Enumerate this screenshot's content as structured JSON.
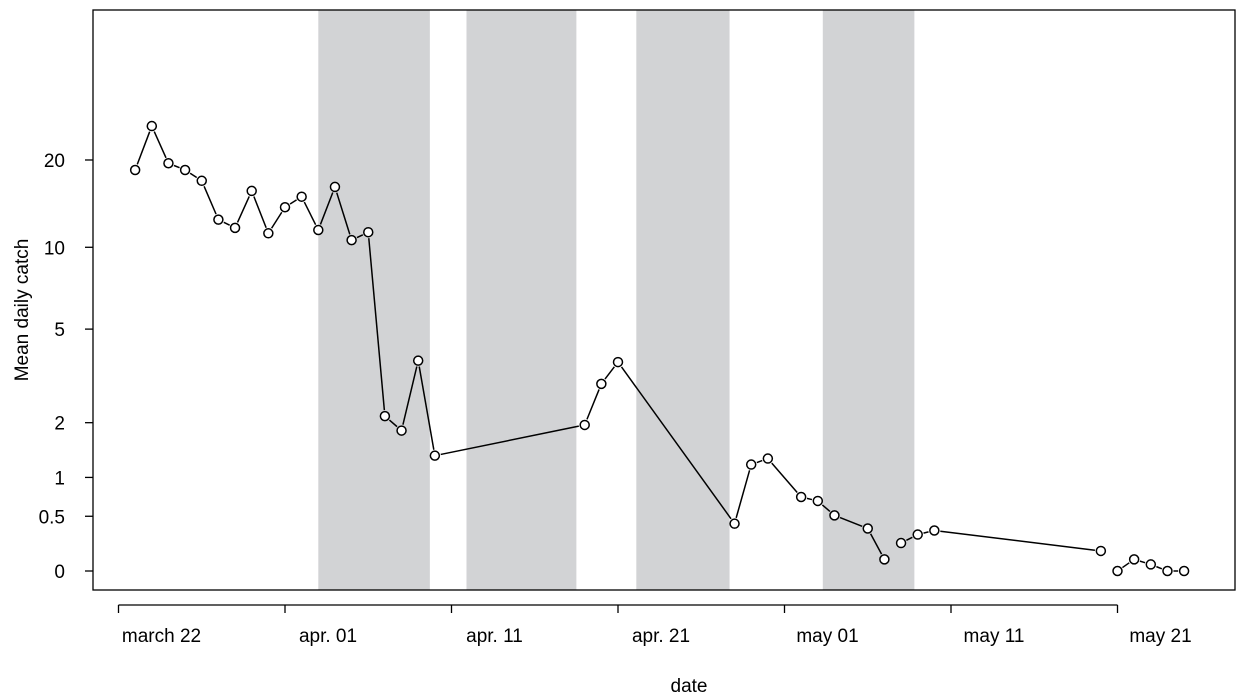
{
  "chart_data": {
    "type": "line",
    "title": "",
    "xlabel": "date",
    "ylabel": "Mean daily catch",
    "y_scale": "log(y+1)",
    "y_ticks": [
      {
        "value": 0,
        "label": "0"
      },
      {
        "value": 0.5,
        "label": "0.5"
      },
      {
        "value": 1,
        "label": "1"
      },
      {
        "value": 2,
        "label": "2"
      },
      {
        "value": 5,
        "label": "5"
      },
      {
        "value": 10,
        "label": "10"
      },
      {
        "value": 20,
        "label": "20"
      }
    ],
    "x_ticks": [
      {
        "date": "2000-03-22",
        "label": "march 22"
      },
      {
        "date": "2000-04-01",
        "label": "apr. 01"
      },
      {
        "date": "2000-04-11",
        "label": "apr. 11"
      },
      {
        "date": "2000-04-21",
        "label": "apr. 21"
      },
      {
        "date": "2000-05-01",
        "label": "may 01"
      },
      {
        "date": "2000-05-11",
        "label": "may 11"
      },
      {
        "date": "2000-05-21",
        "label": "may 21"
      }
    ],
    "xlim": [
      "2000-03-21",
      "2000-05-28"
    ],
    "ylim": [
      0,
      27
    ],
    "grid": false,
    "shaded_periods": [
      [
        "2000-04-03",
        "2000-04-09.7"
      ],
      [
        "2000-04-11.9",
        "2000-04-18.5"
      ],
      [
        "2000-04-22.1",
        "2000-04-27.7"
      ],
      [
        "2000-05-03.3",
        "2000-05-08.8"
      ]
    ],
    "segments": [
      [
        [
          "2000-03-23",
          18.5
        ],
        [
          "2000-03-24",
          26
        ],
        [
          "2000-03-25",
          19.5
        ],
        [
          "2000-03-26",
          18.5
        ],
        [
          "2000-03-27",
          17.0
        ],
        [
          "2000-03-28",
          12.5
        ],
        [
          "2000-03-29",
          11.7
        ],
        [
          "2000-03-30",
          15.7
        ],
        [
          "2000-03-31",
          11.2
        ],
        [
          "2000-04-01",
          13.8
        ],
        [
          "2000-04-02",
          15.0
        ],
        [
          "2000-04-03",
          11.5
        ],
        [
          "2000-04-04",
          16.2
        ],
        [
          "2000-04-05",
          10.6
        ],
        [
          "2000-04-06",
          11.3
        ],
        [
          "2000-04-07",
          2.15
        ],
        [
          "2000-04-08",
          1.83
        ],
        [
          "2000-04-09",
          3.75
        ],
        [
          "2000-04-10",
          1.35
        ],
        [
          "2000-04-19",
          1.95
        ],
        [
          "2000-04-20",
          3.0
        ],
        [
          "2000-04-21",
          3.7
        ],
        [
          "2000-04-28",
          0.42
        ],
        [
          "2000-04-29",
          1.2
        ],
        [
          "2000-04-30",
          1.3
        ],
        [
          "2000-05-02",
          0.73
        ],
        [
          "2000-05-03",
          0.68
        ],
        [
          "2000-05-04",
          0.51
        ],
        [
          "2000-05-06",
          0.37
        ],
        [
          "2000-05-07",
          0.09
        ]
      ],
      [
        [
          "2000-05-08",
          0.23
        ],
        [
          "2000-05-09",
          0.31
        ],
        [
          "2000-05-10",
          0.35
        ],
        [
          "2000-05-20",
          0.16
        ]
      ],
      [
        [
          "2000-05-21",
          0.0
        ],
        [
          "2000-05-22",
          0.09
        ],
        [
          "2000-05-23",
          0.05
        ],
        [
          "2000-05-24",
          0.0
        ],
        [
          "2000-05-25",
          0.0
        ]
      ]
    ]
  }
}
